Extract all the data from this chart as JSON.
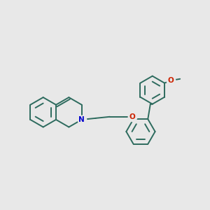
{
  "background_color": "#e8e8e8",
  "bond_color": "#2d6b5e",
  "N_color": "#0000cc",
  "O_color": "#cc2200",
  "bond_width": 1.4,
  "figsize": [
    3.0,
    3.0
  ],
  "dpi": 100,
  "xlim": [
    0,
    10
  ],
  "ylim": [
    0,
    10
  ]
}
